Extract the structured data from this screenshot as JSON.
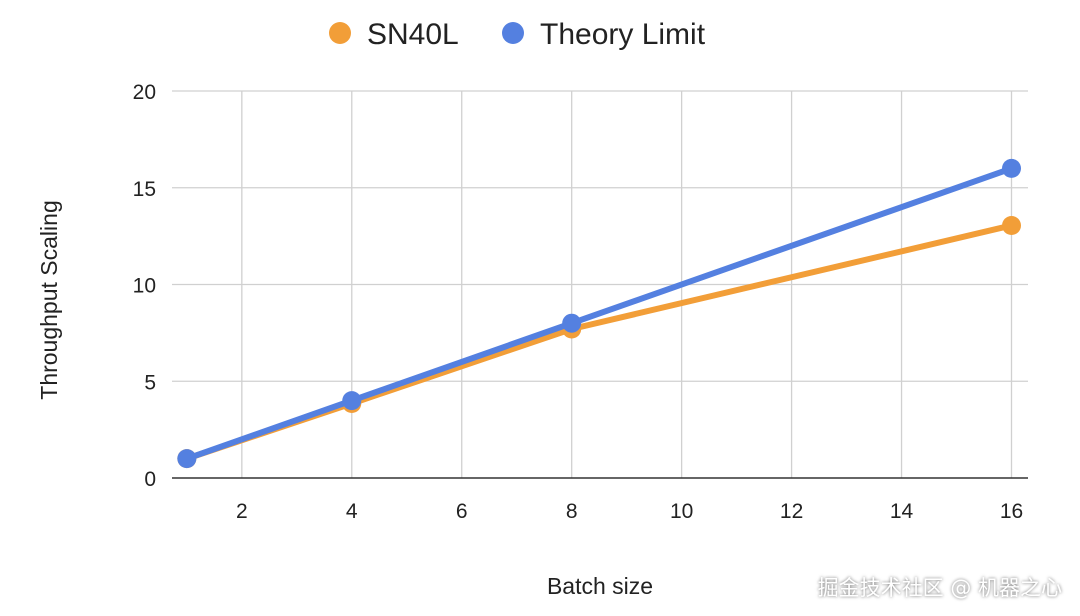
{
  "chart_data": {
    "type": "line",
    "title": "",
    "xlabel": "Batch size",
    "ylabel": "Throughput Scaling",
    "xlim": [
      0.73,
      16.3
    ],
    "ylim": [
      0,
      20
    ],
    "xticks": [
      2,
      4,
      6,
      8,
      10,
      12,
      14,
      16
    ],
    "yticks": [
      0,
      5,
      10,
      15,
      20
    ],
    "grid": true,
    "legend_position": "top",
    "series": [
      {
        "name": "SN40L",
        "color": "#f29e38",
        "x": [
          1,
          4,
          8,
          16
        ],
        "y": [
          1,
          3.85,
          7.7,
          13.05
        ]
      },
      {
        "name": "Theory Limit",
        "color": "#5480e0",
        "x": [
          1,
          4,
          8,
          16
        ],
        "y": [
          1,
          4,
          8,
          16
        ]
      }
    ]
  },
  "watermark": "掘金技术社区 @ 机器之心"
}
